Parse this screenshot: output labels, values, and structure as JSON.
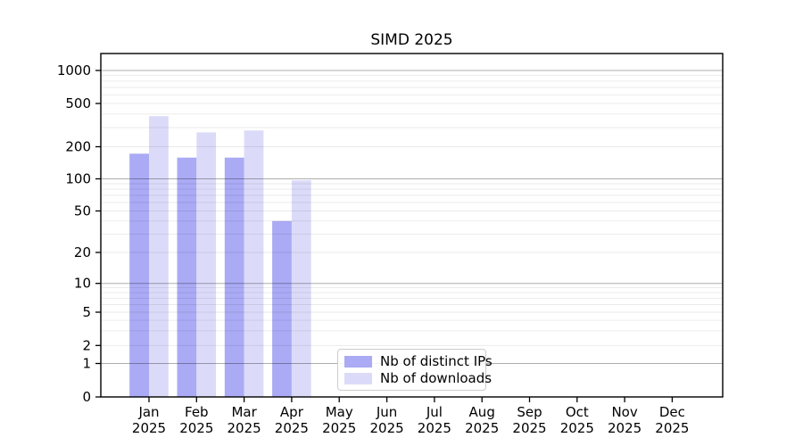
{
  "figure": {
    "background_color": "#ffffff",
    "frame_color": "#000000"
  },
  "chart_data": {
    "type": "bar",
    "title": "SIMD 2025",
    "categories": [
      "Jan",
      "Feb",
      "Mar",
      "Apr",
      "May",
      "Jun",
      "Jul",
      "Aug",
      "Sep",
      "Oct",
      "Nov",
      "Dec"
    ],
    "category_year": "2025",
    "series": [
      {
        "name": "Nb of distinct IPs",
        "color": "#aaaaf5",
        "values": [
          172,
          158,
          158,
          40,
          null,
          null,
          null,
          null,
          null,
          null,
          null,
          null
        ]
      },
      {
        "name": "Nb of downloads",
        "color": "#dbdbf9",
        "values": [
          382,
          271,
          282,
          97,
          null,
          null,
          null,
          null,
          null,
          null,
          null,
          null
        ]
      }
    ],
    "xlabel": "",
    "ylabel": "",
    "yscale": "symlog",
    "ylim": [
      0,
      1400
    ],
    "y_ticks": [
      0,
      1,
      2,
      5,
      10,
      20,
      50,
      100,
      200,
      500,
      1000
    ],
    "y_major_gridlines": [
      1,
      10,
      100,
      1000
    ],
    "y_minor_gridlines": [
      2,
      3,
      4,
      5,
      6,
      7,
      8,
      9,
      20,
      30,
      40,
      50,
      60,
      70,
      80,
      90,
      200,
      300,
      400,
      500,
      600,
      700,
      800,
      900
    ],
    "grid": true,
    "legend_position": "lower center"
  }
}
